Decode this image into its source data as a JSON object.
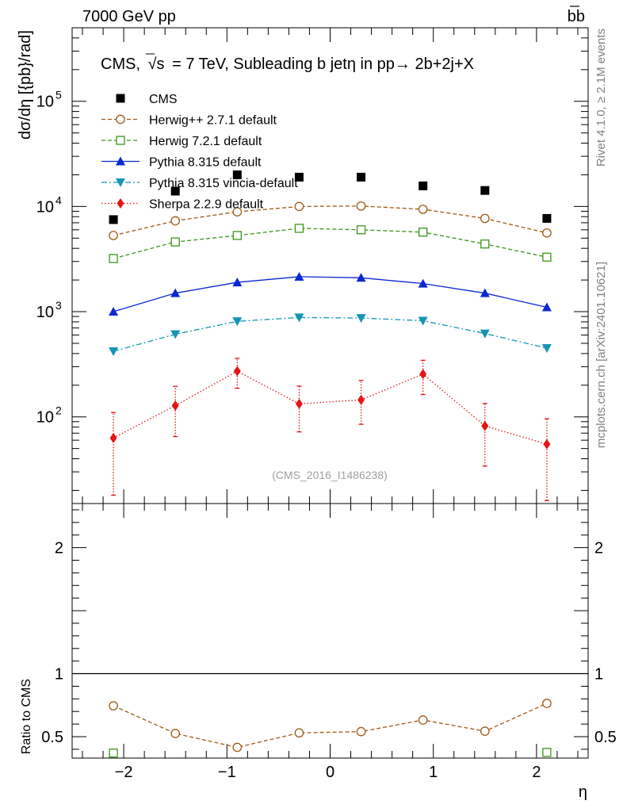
{
  "header": {
    "left": "7000 GeV pp",
    "right": "bb"
  },
  "side_text": {
    "top": "Rivet 4.1.0, ≥ 2.1M events",
    "bottom": "mcplots.cern.ch [arXiv:2401.10621]"
  },
  "chart_data": [
    {
      "type": "line",
      "title_prefix": "CMS,",
      "title_root": "s",
      "title_rest": "= 7 TeV, Subleading b jetη in pp→  2b+2j+X",
      "ylabel": "dσ/dη [{pb}/rad]",
      "xlabel": "η",
      "yscale": "log",
      "ylim": [
        15,
        500000
      ],
      "xlim": [
        -2.5,
        2.5
      ],
      "x_ticks": [
        -2,
        -1,
        0,
        1,
        2
      ],
      "x_tick_labels": [
        "−2",
        "−1",
        "0",
        "1",
        "2"
      ],
      "y_tick_labels": [
        "10",
        "10",
        "10",
        "10"
      ],
      "y_tick_exponents": [
        "2",
        "3",
        "4",
        "5"
      ],
      "watermark": "(CMS_2016_I1486238)",
      "x": [
        -2.1,
        -1.5,
        -0.9,
        -0.3,
        0.3,
        0.9,
        1.5,
        2.1
      ],
      "series": [
        {
          "name": "CMS",
          "color": "#000000",
          "marker": "square-filled",
          "line": "none",
          "values": [
            7500,
            14000,
            20000,
            19000,
            19000,
            15700,
            14200,
            7700
          ]
        },
        {
          "name": "Herwig++ 2.7.1 default",
          "color": "#a05a14",
          "marker": "circle-open",
          "line": "dashed",
          "values": [
            5300,
            7300,
            8900,
            10000,
            10100,
            9400,
            7700,
            5600
          ]
        },
        {
          "name": "Herwig 7.2.1 default",
          "color": "#3c9619",
          "marker": "square-open",
          "line": "dashed",
          "values": [
            3200,
            4600,
            5300,
            6200,
            6000,
            5700,
            4400,
            3300
          ]
        },
        {
          "name": "Pythia 8.315 default",
          "color": "#0a28d2",
          "marker": "triangle-up-filled",
          "line": "solid",
          "values": [
            1000,
            1500,
            1900,
            2150,
            2100,
            1850,
            1500,
            1100
          ]
        },
        {
          "name": "Pythia 8.315 vincia-default",
          "color": "#1496b4",
          "marker": "triangle-down-filled",
          "line": "dashdot",
          "values": [
            420,
            610,
            810,
            880,
            870,
            820,
            620,
            450
          ]
        },
        {
          "name": "Sherpa 2.2.9 default",
          "color": "#e61414",
          "marker": "diamond-filled",
          "line": "dotted",
          "values": [
            63,
            128,
            272,
            133,
            145,
            255,
            82,
            55
          ],
          "err_low": [
            45,
            63,
            85,
            61,
            60,
            92,
            48,
            39
          ],
          "err_high": [
            47,
            67,
            88,
            63,
            77,
            90,
            52,
            41
          ]
        }
      ]
    },
    {
      "type": "line",
      "ylabel": "Ratio to CMS",
      "yscale": "linear",
      "ylim": [
        0.33,
        2.35
      ],
      "y_ticks": [
        0.5,
        1,
        2
      ],
      "y_tick_labels": [
        "0.5",
        "1",
        "2"
      ],
      "reference": 1,
      "x": [
        -2.1,
        -1.5,
        -0.9,
        -0.3,
        0.3,
        0.9,
        1.5,
        2.1
      ],
      "series": [
        {
          "name": "Herwig++ 2.7.1 default",
          "color": "#a05a14",
          "marker": "circle-open",
          "line": "dashed",
          "values": [
            0.745,
            0.525,
            0.415,
            0.53,
            0.54,
            0.632,
            0.543,
            0.764
          ]
        },
        {
          "name": "Herwig 7.2.1 default",
          "color": "#3c9619",
          "marker": "square-open",
          "line": "none",
          "x": [
            -2.1,
            2.1
          ],
          "values": [
            0.37,
            0.375
          ]
        }
      ]
    }
  ]
}
